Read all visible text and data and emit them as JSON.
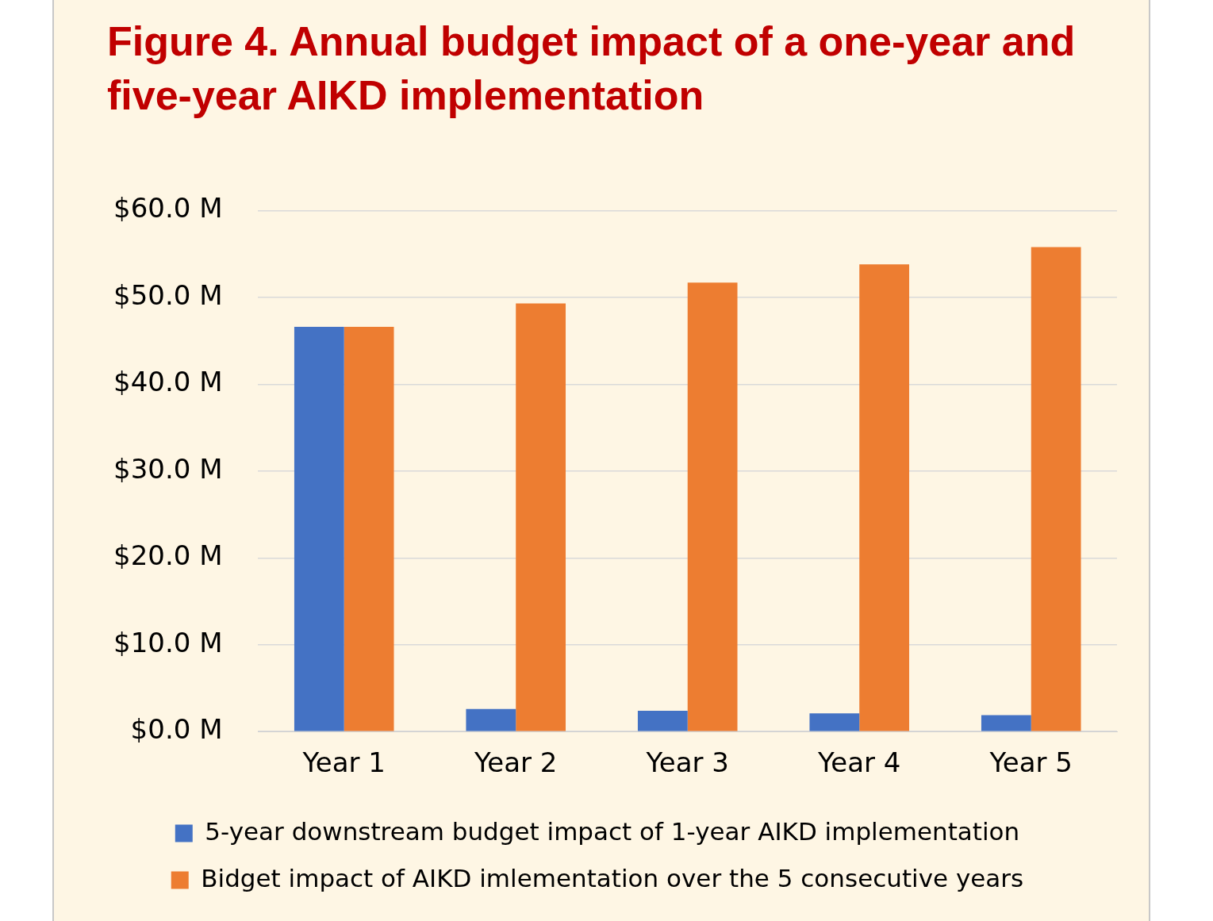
{
  "chart_data": {
    "type": "bar",
    "title": "Figure 4. Annual budget impact of a one-year and five-year AIKD implementation",
    "categories": [
      "Year 1",
      "Year 2",
      "Year 3",
      "Year 4",
      "Year 5"
    ],
    "series": [
      {
        "name": "5-year downstream budget impact of 1-year AIKD implementation",
        "color": "#4472c4",
        "values": [
          46.6,
          2.6,
          2.4,
          2.1,
          1.9
        ]
      },
      {
        "name": "Bidget impact of AIKD imlementation over the 5 consecutive years",
        "color": "#ed7d31",
        "values": [
          46.6,
          49.3,
          51.7,
          53.8,
          55.8
        ]
      }
    ],
    "ylim": [
      0,
      60
    ],
    "yticks": [
      {
        "value": 0,
        "label": "$0.0 M"
      },
      {
        "value": 10,
        "label": "$10.0 M"
      },
      {
        "value": 20,
        "label": "$20.0 M"
      },
      {
        "value": 30,
        "label": "$30.0 M"
      },
      {
        "value": 40,
        "label": "$40.0 M"
      },
      {
        "value": 50,
        "label": "$50.0 M"
      },
      {
        "value": 60,
        "label": "$60.0 M"
      }
    ],
    "grid": "y",
    "legend": "bottom"
  }
}
